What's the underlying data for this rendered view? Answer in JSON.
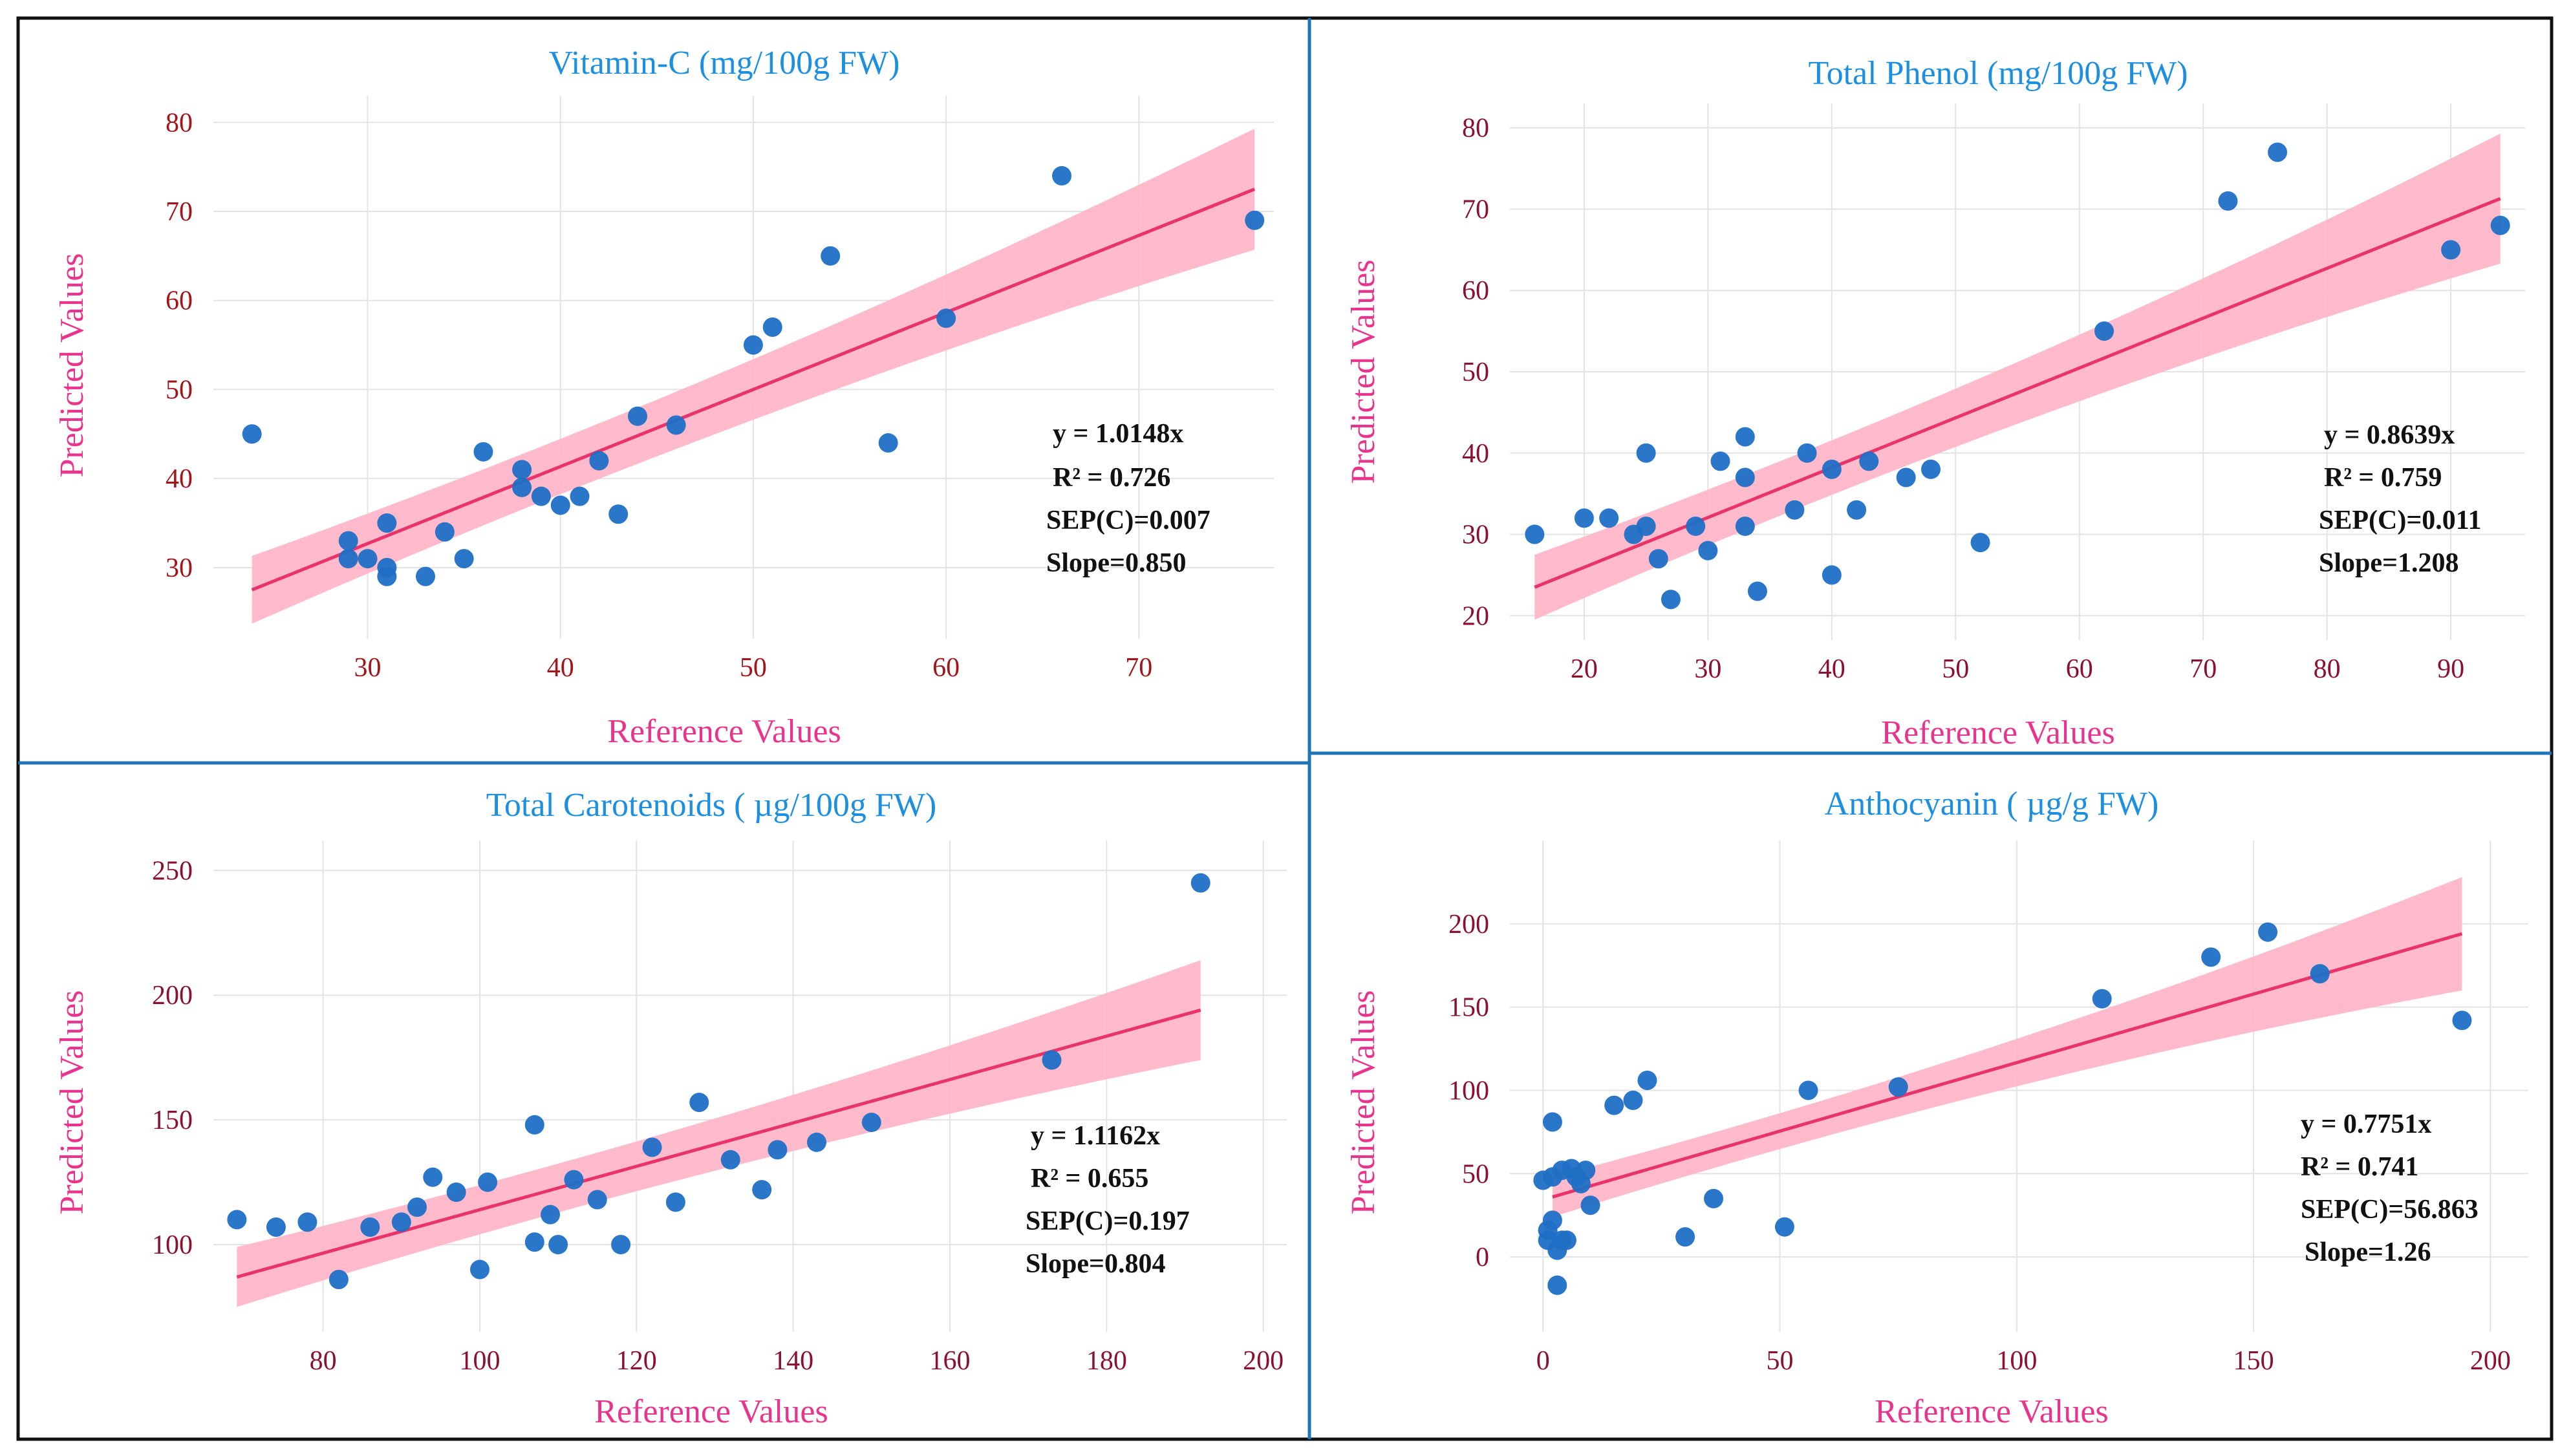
{
  "chart_data": [
    {
      "type": "scatter",
      "title": "Vitamin-C (mg/100g FW)",
      "xlabel": "Reference Values",
      "ylabel": "Predicted Values",
      "xlim": [
        22,
        77
      ],
      "ylim": [
        22,
        83
      ],
      "xticks": [
        30,
        40,
        50,
        60,
        70
      ],
      "yticks": [
        30,
        40,
        50,
        60,
        70,
        80
      ],
      "fit": {
        "x0": 24,
        "y0": 27.5,
        "x1": 76,
        "y1": 72.5,
        "band_start": 3.8,
        "band_mid": 1.5,
        "band_end": 6.8
      },
      "annotations": [
        "y = 1.0148x",
        "R² = 0.726",
        "SEP(C)=0.007",
        "Slope=0.850"
      ],
      "points": [
        [
          24,
          45
        ],
        [
          29,
          33
        ],
        [
          29,
          31
        ],
        [
          30,
          31
        ],
        [
          31,
          35
        ],
        [
          31,
          30
        ],
        [
          31,
          29
        ],
        [
          33,
          29
        ],
        [
          34,
          34
        ],
        [
          35,
          31
        ],
        [
          36,
          43
        ],
        [
          38,
          41
        ],
        [
          38,
          39
        ],
        [
          39,
          38
        ],
        [
          40,
          37
        ],
        [
          41,
          38
        ],
        [
          42,
          42
        ],
        [
          43,
          36
        ],
        [
          44,
          47
        ],
        [
          46,
          46
        ],
        [
          50,
          55
        ],
        [
          51,
          57
        ],
        [
          54,
          65
        ],
        [
          57,
          44
        ],
        [
          60,
          58
        ],
        [
          66,
          74
        ],
        [
          76,
          69
        ]
      ]
    },
    {
      "type": "scatter",
      "title": "Total Phenol (mg/100g FW)",
      "xlabel": "Reference Values",
      "ylabel": "Predicted Values",
      "xlim": [
        14,
        96
      ],
      "ylim": [
        17,
        83
      ],
      "xticks": [
        20,
        30,
        40,
        50,
        60,
        70,
        80,
        90
      ],
      "yticks": [
        20,
        30,
        40,
        50,
        60,
        70,
        80
      ],
      "fit": {
        "x0": 16,
        "y0": 23.5,
        "x1": 94,
        "y1": 71.3,
        "band_start": 4.0,
        "band_mid": 1.6,
        "band_end": 8.0
      },
      "annotations": [
        "y = 0.8639x",
        "R² = 0.759",
        "SEP(C)=0.011",
        "Slope=1.208"
      ],
      "points": [
        [
          16,
          30
        ],
        [
          20,
          32
        ],
        [
          22,
          32
        ],
        [
          24,
          30
        ],
        [
          25,
          31
        ],
        [
          25,
          40
        ],
        [
          26,
          27
        ],
        [
          27,
          22
        ],
        [
          29,
          31
        ],
        [
          30,
          28
        ],
        [
          31,
          39
        ],
        [
          33,
          42
        ],
        [
          33,
          37
        ],
        [
          33,
          31
        ],
        [
          34,
          23
        ],
        [
          37,
          33
        ],
        [
          38,
          40
        ],
        [
          40,
          38
        ],
        [
          40,
          25
        ],
        [
          42,
          33
        ],
        [
          43,
          39
        ],
        [
          46,
          37
        ],
        [
          48,
          38
        ],
        [
          52,
          29
        ],
        [
          62,
          55
        ],
        [
          72,
          71
        ],
        [
          76,
          77
        ],
        [
          90,
          65
        ],
        [
          94,
          68
        ]
      ]
    },
    {
      "type": "scatter",
      "title": "Total Carotenoids ( µg/100g FW)",
      "xlabel": "Reference Values",
      "ylabel": "Predicted Values",
      "xlim": [
        66,
        203
      ],
      "ylim": [
        65,
        262
      ],
      "xticks": [
        80,
        100,
        120,
        140,
        160,
        180,
        200
      ],
      "yticks": [
        100,
        150,
        200,
        250
      ],
      "fit": {
        "x0": 69,
        "y0": 87,
        "x1": 192,
        "y1": 194,
        "band_start": 12,
        "band_mid": 5,
        "band_end": 20
      },
      "annotations": [
        "y = 1.1162x",
        "R² = 0.655",
        "SEP(C)=0.197",
        "Slope=0.804"
      ],
      "points": [
        [
          69,
          110
        ],
        [
          74,
          107
        ],
        [
          78,
          109
        ],
        [
          82,
          86
        ],
        [
          86,
          107
        ],
        [
          90,
          109
        ],
        [
          92,
          115
        ],
        [
          94,
          127
        ],
        [
          97,
          121
        ],
        [
          100,
          90
        ],
        [
          101,
          125
        ],
        [
          107,
          101
        ],
        [
          107,
          148
        ],
        [
          109,
          112
        ],
        [
          110,
          100
        ],
        [
          112,
          126
        ],
        [
          115,
          118
        ],
        [
          118,
          100
        ],
        [
          122,
          139
        ],
        [
          125,
          117
        ],
        [
          128,
          157
        ],
        [
          132,
          134
        ],
        [
          136,
          122
        ],
        [
          138,
          138
        ],
        [
          143,
          141
        ],
        [
          150,
          149
        ],
        [
          173,
          174
        ],
        [
          192,
          245
        ]
      ]
    },
    {
      "type": "scatter",
      "title": "Anthocyanin ( µg/g FW)",
      "xlabel": "Reference Values",
      "ylabel": "Predicted Values",
      "xlim": [
        -7,
        208
      ],
      "ylim": [
        -45,
        250
      ],
      "xticks": [
        0,
        50,
        100,
        150,
        200
      ],
      "yticks": [
        0,
        50,
        100,
        150,
        200
      ],
      "fit": {
        "x0": 2,
        "y0": 36,
        "x1": 194,
        "y1": 194,
        "band_start": 12,
        "band_mid": 5,
        "band_end": 34
      },
      "annotations": [
        "y = 0.7751x",
        "R² = 0.741",
        "SEP(C)=56.863",
        "Slope=1.26"
      ],
      "points": [
        [
          0,
          46
        ],
        [
          1,
          10
        ],
        [
          1,
          16
        ],
        [
          2,
          22
        ],
        [
          2,
          81
        ],
        [
          2,
          48
        ],
        [
          3,
          4
        ],
        [
          3,
          -17
        ],
        [
          4,
          52
        ],
        [
          4,
          10
        ],
        [
          5,
          10
        ],
        [
          6,
          53
        ],
        [
          7,
          48
        ],
        [
          8,
          44
        ],
        [
          9,
          52
        ],
        [
          10,
          31
        ],
        [
          15,
          91
        ],
        [
          19,
          94
        ],
        [
          22,
          106
        ],
        [
          30,
          12
        ],
        [
          36,
          35
        ],
        [
          51,
          18
        ],
        [
          56,
          100
        ],
        [
          75,
          102
        ],
        [
          118,
          155
        ],
        [
          141,
          180
        ],
        [
          153,
          195
        ],
        [
          164,
          170
        ],
        [
          194,
          142
        ]
      ]
    }
  ]
}
